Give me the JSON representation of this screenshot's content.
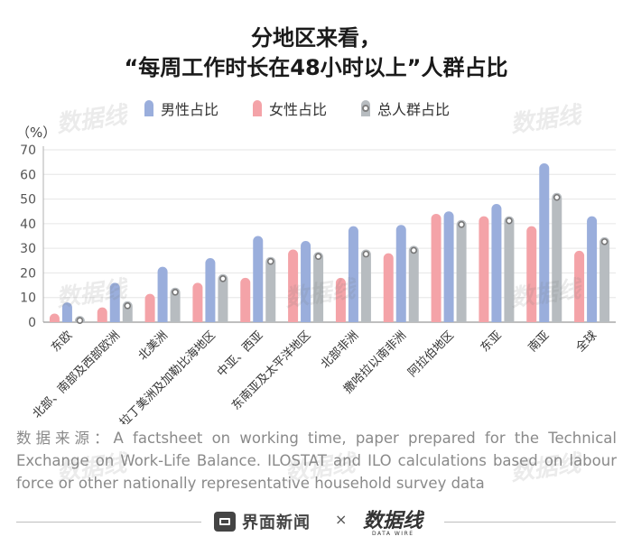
{
  "title": {
    "line1": "分地区来看，",
    "line2": "“每周工作时长在48小时以上”人群占比"
  },
  "unit_label": "（%）",
  "source": "数据来源：A factsheet on working time, paper prepared for the Technical Exchange on Work‑Life Balance. ILOSTAT and ILO calculations based on labour force or other nationally representative household survey data",
  "footer": {
    "brand": "界面新闻",
    "separator": "×",
    "partner_logo": "数据线",
    "partner_logo_sub": "DATA WIRE"
  },
  "watermark_text": "数据线",
  "colors": {
    "male": "#9aaedc",
    "female": "#f4a3a8",
    "total": "#b7bcc0",
    "axis": "#b0b0b0",
    "grid": "#e6e6e6"
  },
  "chart_data": {
    "type": "bar",
    "title": "分地区来看，“每周工作时长在48小时以上”人群占比",
    "xlabel": "",
    "ylabel": "（%）",
    "ylim": [
      0,
      70
    ],
    "yticks": [
      0,
      10,
      20,
      30,
      40,
      50,
      60,
      70
    ],
    "grid": true,
    "legend_position": "top",
    "categories": [
      "东欧",
      "北部、南部及西部欧洲",
      "北美洲",
      "拉丁美洲及加勒比海地区",
      "中亚、西亚",
      "东南亚及太平洋地区",
      "北部非洲",
      "撒哈拉以南非洲",
      "阿拉伯地区",
      "东亚",
      "南亚",
      "全球"
    ],
    "series": [
      {
        "name": "男性占比",
        "key": "male",
        "values": [
          8,
          16,
          22.5,
          26,
          35,
          33,
          39,
          39.5,
          45,
          48,
          64.5,
          43
        ]
      },
      {
        "name": "女性占比",
        "key": "female",
        "values": [
          3.5,
          6,
          11.5,
          16,
          18,
          29.5,
          18,
          28,
          44,
          43,
          39,
          29
        ]
      },
      {
        "name": "总人群占比",
        "key": "total",
        "values": [
          2.5,
          8.5,
          14,
          19.5,
          26.5,
          28.5,
          29.5,
          31,
          41.5,
          43,
          52.5,
          34.5
        ]
      }
    ]
  }
}
